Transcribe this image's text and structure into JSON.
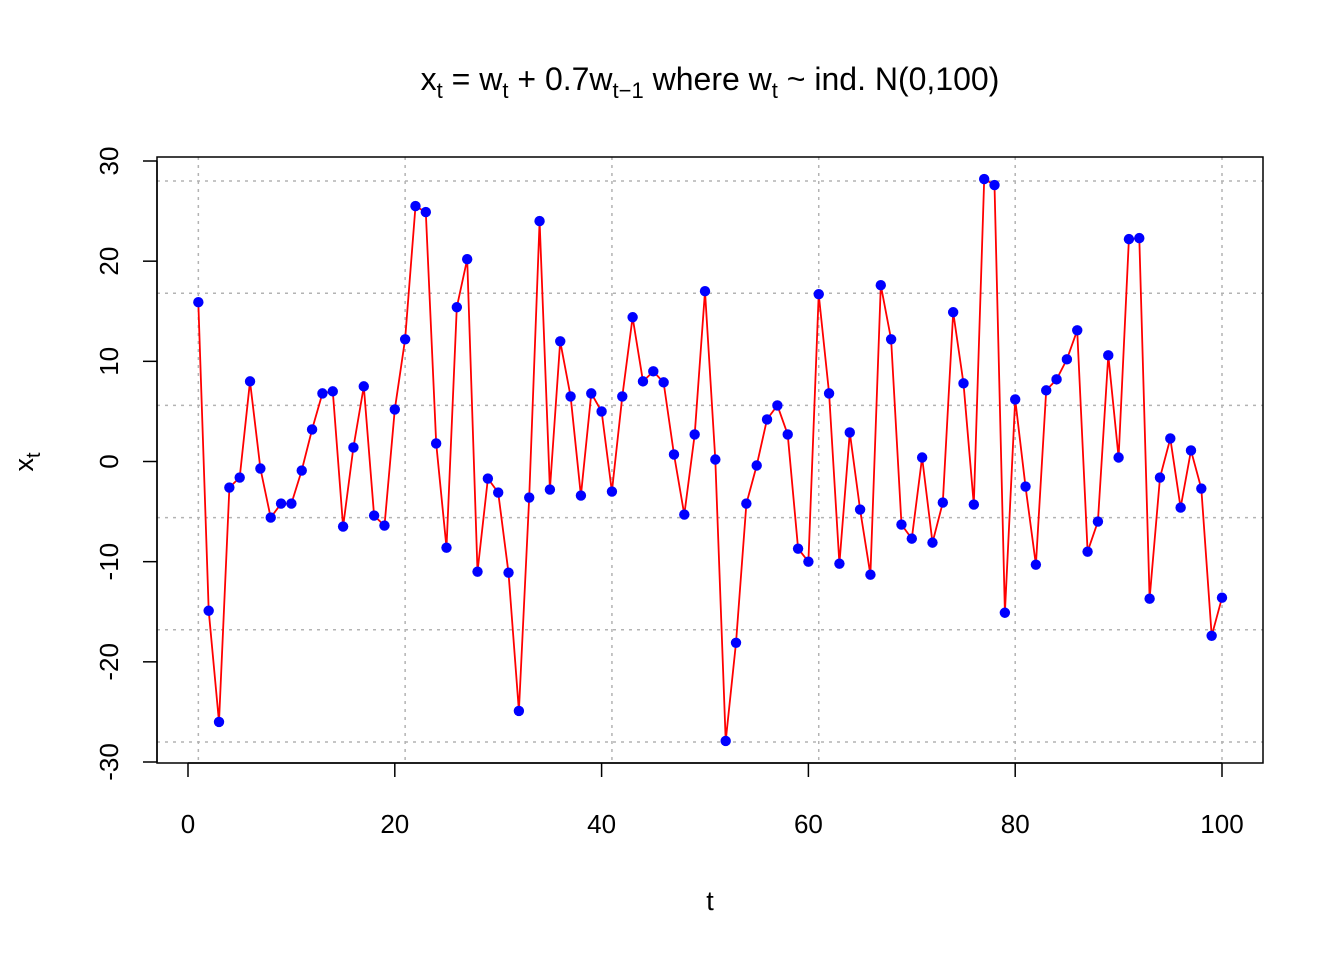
{
  "chart_data": {
    "type": "line",
    "title": {
      "x": "x",
      "x_sub": "t",
      "eq": " = ",
      "w": "w",
      "w_sub": "t",
      "plus": " + 0.7",
      "w2": "w",
      "w2_sub": "t−1",
      "where": " where ",
      "w3": "w",
      "w3_sub": "t",
      "dist": " ~ ind. N(0,100)"
    },
    "xlabel": "t",
    "ylabel": "x",
    "ylabel_sub": "t",
    "xlim": [
      0,
      104
    ],
    "ylim": [
      -30,
      30
    ],
    "xticks": [
      "0",
      "20",
      "40",
      "60",
      "80",
      "100"
    ],
    "yticks": [
      "-30",
      "-20",
      "-10",
      "0",
      "10",
      "20",
      "30"
    ],
    "grid": true,
    "colors": {
      "line": "#ff0000",
      "points": "#0000ff",
      "grid": "#b3b3b3"
    },
    "grid_x": [
      1,
      21,
      41,
      61,
      80,
      100
    ],
    "grid_y": [
      -28,
      -16.8,
      -5.6,
      5.6,
      16.8,
      28
    ],
    "series": [
      {
        "x": [
          1,
          2,
          3,
          4,
          5,
          6,
          7,
          8,
          9,
          10,
          11,
          12,
          13,
          14,
          15,
          16,
          17,
          18,
          19,
          20,
          21,
          22,
          23,
          24,
          25,
          26,
          27,
          28,
          29,
          30,
          31,
          32,
          33,
          34,
          35,
          36,
          37,
          38,
          39,
          40,
          41,
          42,
          43,
          44,
          45,
          46,
          47,
          48,
          49,
          50,
          51,
          52,
          53,
          54,
          55,
          56,
          57,
          58,
          59,
          60,
          61,
          62,
          63,
          64,
          65,
          66,
          67,
          68,
          69,
          70,
          71,
          72,
          73,
          74,
          75,
          76,
          77,
          78,
          79,
          80,
          81,
          82,
          83,
          84,
          85,
          86,
          87,
          88,
          89,
          90,
          91,
          92,
          93,
          94,
          95,
          96,
          97,
          98,
          99,
          100
        ],
        "values": [
          15.9,
          -14.9,
          -26.0,
          -2.6,
          -1.6,
          8.0,
          -0.7,
          -5.6,
          -4.2,
          -4.2,
          -0.9,
          3.2,
          6.8,
          7.0,
          -6.5,
          1.4,
          7.5,
          -5.4,
          -6.4,
          5.2,
          12.2,
          25.5,
          24.9,
          1.8,
          -8.6,
          15.4,
          20.2,
          -11.0,
          -1.7,
          -3.1,
          -11.1,
          -24.9,
          -3.6,
          24.0,
          -2.8,
          12.0,
          6.5,
          -3.4,
          6.8,
          5.0,
          -3.0,
          6.5,
          14.4,
          8.0,
          9.0,
          7.9,
          0.7,
          -5.3,
          2.7,
          17.0,
          0.2,
          -27.9,
          -18.1,
          -4.2,
          -0.4,
          4.2,
          5.6,
          2.7,
          -8.7,
          -10.0,
          16.7,
          6.8,
          -10.2,
          2.9,
          -4.8,
          -11.3,
          17.6,
          12.2,
          -6.3,
          -7.7,
          0.4,
          -8.1,
          -4.1,
          14.9,
          7.8,
          -4.3,
          28.2,
          27.6,
          -15.1,
          6.2,
          -2.5,
          -10.3,
          7.1,
          8.2,
          10.2,
          13.1,
          -9.0,
          -6.0,
          10.6,
          0.4,
          22.2,
          22.3,
          -13.7,
          -1.6,
          2.3,
          -4.6,
          1.1,
          -2.7,
          -17.4,
          -13.6
        ]
      }
    ]
  }
}
